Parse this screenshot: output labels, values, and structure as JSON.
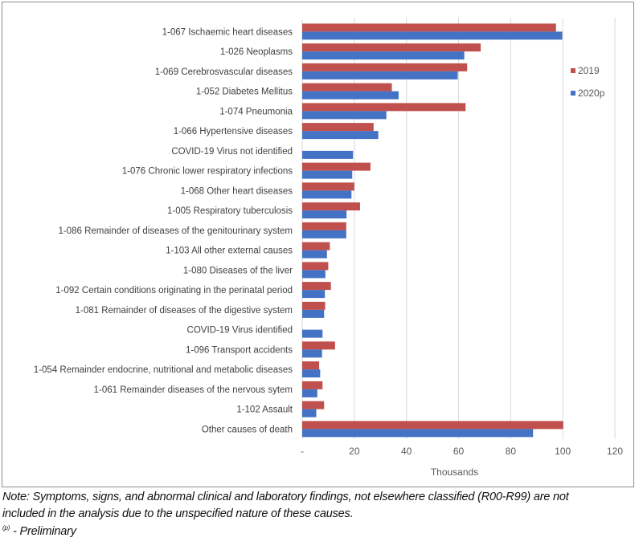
{
  "chart_data": {
    "type": "bar",
    "orientation": "horizontal",
    "xlabel": "Thousands",
    "xlim": [
      0,
      120
    ],
    "x_ticks": [
      "-",
      "20",
      "40",
      "60",
      "80",
      "100",
      "120"
    ],
    "grid": true,
    "legend_position": "right",
    "categories": [
      "1-067 Ischaemic heart diseases",
      "1-026 Neoplasms",
      "1-069 Cerebrosvascular diseases",
      "1-052 Diabetes Mellitus",
      "1-074 Pneumonia",
      "1-066 Hypertensive diseases",
      "COVID-19 Virus not identified",
      "1-076 Chronic lower respiratory infections",
      "1-068 Other heart diseases",
      "1-005 Respiratory tuberculosis",
      "1-086 Remainder of diseases of the genitourinary system",
      "1-103 All other external causes",
      "1-080 Diseases of the liver",
      "1-092 Certain conditions originating in the perinatal period",
      "1-081 Remainder of diseases of the digestive system",
      "COVID-19 Virus identified",
      "1-096 Transport accidents",
      "1-054 Remainder endocrine, nutritional and metabolic diseases",
      "1-061 Remainder diseases of the nervous sytem",
      "1-102 Assault",
      "Other causes of death"
    ],
    "series": [
      {
        "name": "2019",
        "color": "#C0504D",
        "values": [
          97.4,
          68.5,
          63.3,
          34.4,
          62.7,
          27.4,
          null,
          26.2,
          20.0,
          22.2,
          16.9,
          10.6,
          10.0,
          11.0,
          8.8,
          null,
          12.6,
          6.5,
          7.8,
          8.4,
          100.2
        ]
      },
      {
        "name": "2020p",
        "color": "#4472C4",
        "values": [
          99.8,
          62.2,
          59.7,
          37.0,
          32.3,
          29.2,
          19.5,
          19.2,
          18.9,
          17.0,
          16.9,
          9.5,
          8.9,
          8.7,
          8.4,
          7.8,
          7.6,
          6.9,
          5.8,
          5.4,
          88.6
        ]
      }
    ]
  },
  "notes": {
    "line1": "Note: Symptoms, signs, and abnormal clinical and laboratory findings, not elsewhere classified (R00-R99) are not",
    "line2": "included in the analysis due to the unspecified nature of these causes.",
    "prelim_sup": "(p)",
    "prelim": " - Preliminary"
  }
}
